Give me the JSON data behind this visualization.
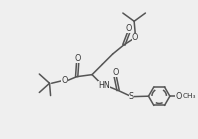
{
  "bg_color": "#efefef",
  "line_color": "#555555",
  "atom_color": "#333333",
  "line_width": 1.1,
  "font_size": 5.8,
  "fig_bg": "#efefef",
  "xlim": [
    0.0,
    9.5
  ],
  "ylim": [
    1.5,
    7.5
  ]
}
